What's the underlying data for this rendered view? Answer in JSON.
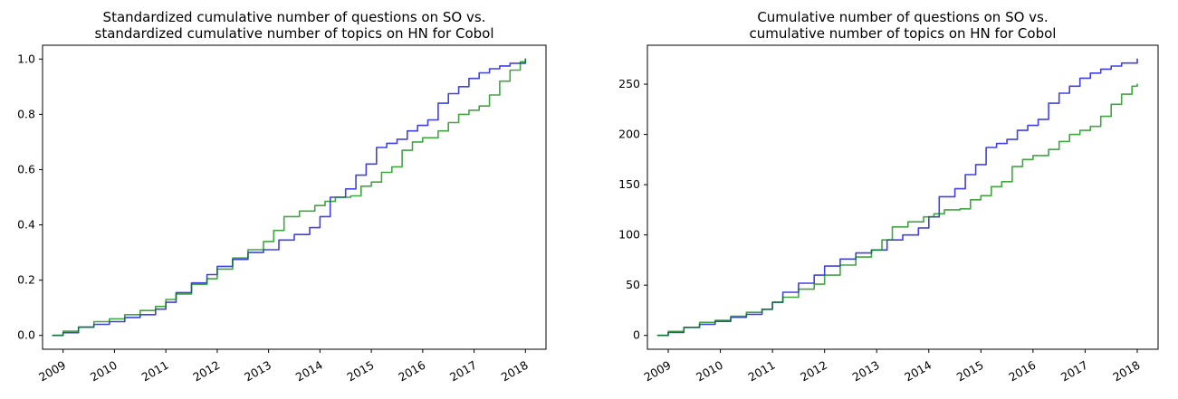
{
  "chart_data": [
    {
      "type": "line",
      "title": [
        "Standardized cumulative number of questions on SO vs.",
        "standardized cumulative number of topics on HN for Cobol"
      ],
      "xlabel": "",
      "ylabel": "",
      "xlim": [
        2008.6,
        2018.4
      ],
      "ylim": [
        -0.05,
        1.05
      ],
      "xticks": [
        2009,
        2010,
        2011,
        2012,
        2013,
        2014,
        2015,
        2016,
        2017,
        2018
      ],
      "xtick_labels": [
        "2009",
        "2010",
        "2011",
        "2012",
        "2013",
        "2014",
        "2015",
        "2016",
        "2017",
        "2018"
      ],
      "yticks": [
        0.0,
        0.2,
        0.4,
        0.6,
        0.8,
        1.0
      ],
      "ytick_labels": [
        "0.0",
        "0.2",
        "0.4",
        "0.6",
        "0.8",
        "1.0"
      ],
      "grid": false,
      "series": [
        {
          "color": "#0000dd",
          "points": [
            [
              2008.8,
              0.0
            ],
            [
              2009.0,
              0.01
            ],
            [
              2009.3,
              0.03
            ],
            [
              2009.6,
              0.04
            ],
            [
              2009.9,
              0.05
            ],
            [
              2010.2,
              0.065
            ],
            [
              2010.5,
              0.075
            ],
            [
              2010.8,
              0.095
            ],
            [
              2011.0,
              0.12
            ],
            [
              2011.2,
              0.155
            ],
            [
              2011.5,
              0.19
            ],
            [
              2011.8,
              0.22
            ],
            [
              2012.0,
              0.25
            ],
            [
              2012.3,
              0.275
            ],
            [
              2012.6,
              0.3
            ],
            [
              2012.9,
              0.31
            ],
            [
              2013.2,
              0.345
            ],
            [
              2013.5,
              0.365
            ],
            [
              2013.8,
              0.39
            ],
            [
              2014.0,
              0.43
            ],
            [
              2014.2,
              0.5
            ],
            [
              2014.5,
              0.53
            ],
            [
              2014.7,
              0.58
            ],
            [
              2014.9,
              0.62
            ],
            [
              2015.1,
              0.68
            ],
            [
              2015.3,
              0.695
            ],
            [
              2015.5,
              0.71
            ],
            [
              2015.7,
              0.74
            ],
            [
              2015.9,
              0.76
            ],
            [
              2016.1,
              0.78
            ],
            [
              2016.3,
              0.84
            ],
            [
              2016.5,
              0.875
            ],
            [
              2016.7,
              0.9
            ],
            [
              2016.9,
              0.93
            ],
            [
              2017.1,
              0.95
            ],
            [
              2017.3,
              0.965
            ],
            [
              2017.5,
              0.975
            ],
            [
              2017.7,
              0.985
            ],
            [
              2018.0,
              1.0
            ]
          ]
        },
        {
          "color": "#008800",
          "points": [
            [
              2008.8,
              0.0
            ],
            [
              2009.0,
              0.015
            ],
            [
              2009.3,
              0.03
            ],
            [
              2009.6,
              0.05
            ],
            [
              2009.9,
              0.06
            ],
            [
              2010.2,
              0.075
            ],
            [
              2010.5,
              0.09
            ],
            [
              2010.8,
              0.105
            ],
            [
              2011.0,
              0.13
            ],
            [
              2011.2,
              0.15
            ],
            [
              2011.5,
              0.185
            ],
            [
              2011.8,
              0.205
            ],
            [
              2012.0,
              0.24
            ],
            [
              2012.3,
              0.28
            ],
            [
              2012.6,
              0.31
            ],
            [
              2012.9,
              0.34
            ],
            [
              2013.1,
              0.38
            ],
            [
              2013.3,
              0.43
            ],
            [
              2013.6,
              0.45
            ],
            [
              2013.9,
              0.47
            ],
            [
              2014.1,
              0.485
            ],
            [
              2014.3,
              0.5
            ],
            [
              2014.6,
              0.505
            ],
            [
              2014.8,
              0.54
            ],
            [
              2015.0,
              0.555
            ],
            [
              2015.2,
              0.59
            ],
            [
              2015.4,
              0.61
            ],
            [
              2015.6,
              0.67
            ],
            [
              2015.8,
              0.7
            ],
            [
              2016.0,
              0.715
            ],
            [
              2016.3,
              0.74
            ],
            [
              2016.5,
              0.77
            ],
            [
              2016.7,
              0.8
            ],
            [
              2016.9,
              0.815
            ],
            [
              2017.1,
              0.83
            ],
            [
              2017.3,
              0.87
            ],
            [
              2017.5,
              0.92
            ],
            [
              2017.7,
              0.96
            ],
            [
              2017.9,
              0.99
            ],
            [
              2018.0,
              1.0
            ]
          ]
        }
      ]
    },
    {
      "type": "line",
      "title": [
        "Cumulative number of questions on SO vs.",
        "cumulative number of topics on HN for Cobol"
      ],
      "xlabel": "",
      "ylabel": "",
      "xlim": [
        2008.6,
        2018.4
      ],
      "ylim": [
        -13.75,
        288.75
      ],
      "xticks": [
        2009,
        2010,
        2011,
        2012,
        2013,
        2014,
        2015,
        2016,
        2017,
        2018
      ],
      "xtick_labels": [
        "2009",
        "2010",
        "2011",
        "2012",
        "2013",
        "2014",
        "2015",
        "2016",
        "2017",
        "2018"
      ],
      "yticks": [
        0,
        50,
        100,
        150,
        200,
        250
      ],
      "ytick_labels": [
        "0",
        "50",
        "100",
        "150",
        "200",
        "250"
      ],
      "grid": false,
      "series": [
        {
          "color": "#0000dd",
          "points": [
            [
              2008.8,
              0
            ],
            [
              2009.0,
              3
            ],
            [
              2009.3,
              8
            ],
            [
              2009.6,
              11
            ],
            [
              2009.9,
              14
            ],
            [
              2010.2,
              18
            ],
            [
              2010.5,
              21
            ],
            [
              2010.8,
              26
            ],
            [
              2011.0,
              33
            ],
            [
              2011.2,
              43
            ],
            [
              2011.5,
              52
            ],
            [
              2011.8,
              60
            ],
            [
              2012.0,
              69
            ],
            [
              2012.3,
              76
            ],
            [
              2012.6,
              82
            ],
            [
              2012.9,
              85
            ],
            [
              2013.2,
              95
            ],
            [
              2013.5,
              100
            ],
            [
              2013.8,
              107
            ],
            [
              2014.0,
              118
            ],
            [
              2014.2,
              138
            ],
            [
              2014.5,
              146
            ],
            [
              2014.7,
              160
            ],
            [
              2014.9,
              170
            ],
            [
              2015.1,
              187
            ],
            [
              2015.3,
              191
            ],
            [
              2015.5,
              195
            ],
            [
              2015.7,
              204
            ],
            [
              2015.9,
              209
            ],
            [
              2016.1,
              215
            ],
            [
              2016.3,
              231
            ],
            [
              2016.5,
              241
            ],
            [
              2016.7,
              248
            ],
            [
              2016.9,
              256
            ],
            [
              2017.1,
              261
            ],
            [
              2017.3,
              265
            ],
            [
              2017.5,
              268
            ],
            [
              2017.7,
              271
            ],
            [
              2018.0,
              275
            ]
          ]
        },
        {
          "color": "#008800",
          "points": [
            [
              2008.8,
              0
            ],
            [
              2009.0,
              4
            ],
            [
              2009.3,
              8
            ],
            [
              2009.6,
              13
            ],
            [
              2009.9,
              15
            ],
            [
              2010.2,
              19
            ],
            [
              2010.5,
              23
            ],
            [
              2010.8,
              26
            ],
            [
              2011.0,
              33
            ],
            [
              2011.2,
              38
            ],
            [
              2011.5,
              46
            ],
            [
              2011.8,
              51
            ],
            [
              2012.0,
              60
            ],
            [
              2012.3,
              70
            ],
            [
              2012.6,
              78
            ],
            [
              2012.9,
              85
            ],
            [
              2013.1,
              95
            ],
            [
              2013.3,
              108
            ],
            [
              2013.6,
              113
            ],
            [
              2013.9,
              118
            ],
            [
              2014.1,
              121
            ],
            [
              2014.3,
              125
            ],
            [
              2014.6,
              126
            ],
            [
              2014.8,
              135
            ],
            [
              2015.0,
              139
            ],
            [
              2015.2,
              148
            ],
            [
              2015.4,
              153
            ],
            [
              2015.6,
              168
            ],
            [
              2015.8,
              175
            ],
            [
              2016.0,
              179
            ],
            [
              2016.3,
              185
            ],
            [
              2016.5,
              193
            ],
            [
              2016.7,
              200
            ],
            [
              2016.9,
              204
            ],
            [
              2017.1,
              208
            ],
            [
              2017.3,
              218
            ],
            [
              2017.5,
              230
            ],
            [
              2017.7,
              240
            ],
            [
              2017.9,
              248
            ],
            [
              2018.0,
              250
            ]
          ]
        }
      ]
    }
  ]
}
